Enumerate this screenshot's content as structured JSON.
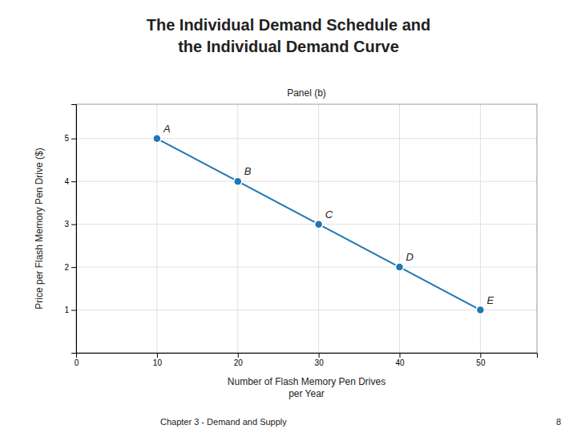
{
  "chart_data": {
    "type": "line",
    "title": "The Individual Demand Schedule and\nthe Individual Demand Curve",
    "subtitle": "Panel (b)",
    "x_label": "Number of Flash Memory Pen Drives\nper Year",
    "y_label": "Price per Flash Memory Pen Drive ($)",
    "annotations": [
      "Chapter 3 - Demand and Supply",
      "8"
    ],
    "x": [
      10,
      20,
      30,
      40,
      50
    ],
    "series": [
      {
        "values": [
          5,
          4,
          3,
          2,
          1
        ],
        "labels": [
          "A",
          "B",
          "C",
          "D",
          "E"
        ],
        "marker": "circle",
        "line_style": "solid"
      }
    ],
    "xlim": [
      0,
      57
    ],
    "ylim": [
      0,
      5.8
    ],
    "xticks": [
      0,
      10,
      20,
      30,
      40,
      50
    ],
    "yticks": [
      1,
      2,
      3,
      4,
      5
    ],
    "grid": true
  }
}
